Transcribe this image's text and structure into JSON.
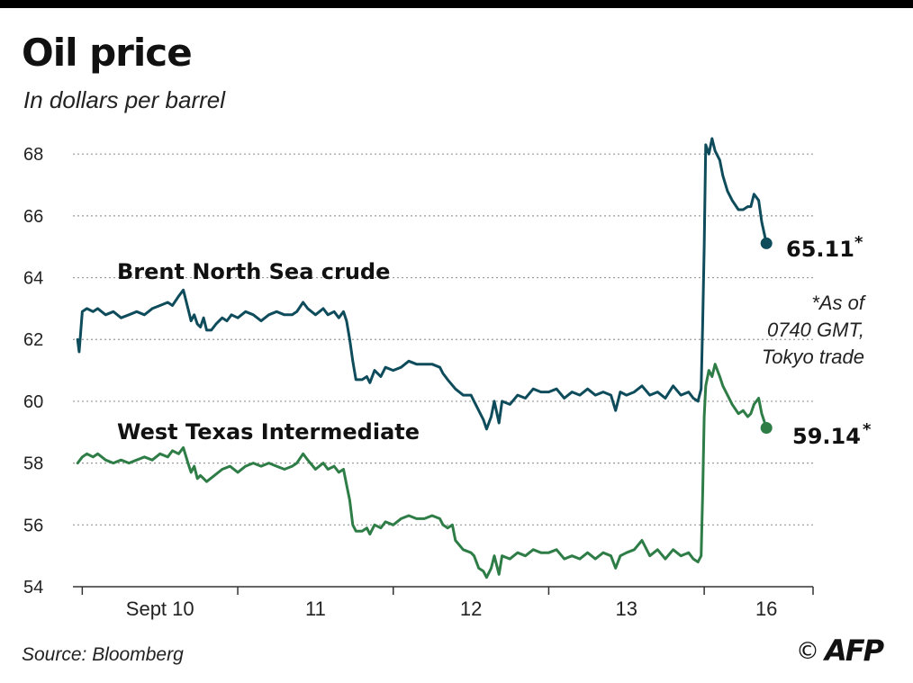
{
  "header": {
    "title": "Oil price",
    "subtitle": "In dollars per barrel"
  },
  "footer": {
    "source": "Source: Bloomberg",
    "copyright_symbol": "©",
    "logo_text": "AFP"
  },
  "note": {
    "lines": [
      "*As of",
      "0740 GMT,",
      "Tokyo trade"
    ]
  },
  "colors": {
    "brent": "#0e4c5c",
    "wti": "#2e7d47",
    "grid": "#999999",
    "axis": "#333333"
  },
  "chart_data": {
    "type": "line",
    "title": "Oil price",
    "subtitle": "In dollars per barrel",
    "ylim": [
      54,
      68.5
    ],
    "yticks": [
      54,
      56,
      58,
      60,
      62,
      64,
      66,
      68
    ],
    "grid": true,
    "xticks": [
      {
        "x": 1.5,
        "label": "Sept 10"
      },
      {
        "x": 2.5,
        "label": "11"
      },
      {
        "x": 3.5,
        "label": "12"
      },
      {
        "x": 4.5,
        "label": "13"
      },
      {
        "x": 5.4,
        "label": "16"
      }
    ],
    "xlim": [
      0.94,
      5.7
    ],
    "day_boundaries": [
      1,
      2,
      3,
      4,
      5,
      5.7
    ],
    "series": [
      {
        "name": "Brent North Sea crude",
        "color_key": "brent",
        "last_value": "65.11",
        "points": [
          [
            0.97,
            62.0
          ],
          [
            0.98,
            61.6
          ],
          [
            1.0,
            62.9
          ],
          [
            1.03,
            63.0
          ],
          [
            1.07,
            62.9
          ],
          [
            1.1,
            63.0
          ],
          [
            1.15,
            62.8
          ],
          [
            1.2,
            62.9
          ],
          [
            1.25,
            62.7
          ],
          [
            1.3,
            62.8
          ],
          [
            1.35,
            62.9
          ],
          [
            1.4,
            62.8
          ],
          [
            1.45,
            63.0
          ],
          [
            1.5,
            63.1
          ],
          [
            1.55,
            63.2
          ],
          [
            1.58,
            63.1
          ],
          [
            1.62,
            63.4
          ],
          [
            1.65,
            63.6
          ],
          [
            1.68,
            63.0
          ],
          [
            1.7,
            62.6
          ],
          [
            1.72,
            62.8
          ],
          [
            1.74,
            62.5
          ],
          [
            1.76,
            62.4
          ],
          [
            1.78,
            62.7
          ],
          [
            1.8,
            62.3
          ],
          [
            1.83,
            62.3
          ],
          [
            1.86,
            62.5
          ],
          [
            1.9,
            62.7
          ],
          [
            1.93,
            62.6
          ],
          [
            1.96,
            62.8
          ],
          [
            2.0,
            62.7
          ],
          [
            2.05,
            62.9
          ],
          [
            2.1,
            62.8
          ],
          [
            2.15,
            62.6
          ],
          [
            2.2,
            62.8
          ],
          [
            2.25,
            62.9
          ],
          [
            2.3,
            62.8
          ],
          [
            2.35,
            62.8
          ],
          [
            2.38,
            62.9
          ],
          [
            2.42,
            63.2
          ],
          [
            2.45,
            63.0
          ],
          [
            2.5,
            62.8
          ],
          [
            2.55,
            63.0
          ],
          [
            2.58,
            62.8
          ],
          [
            2.62,
            62.9
          ],
          [
            2.65,
            62.7
          ],
          [
            2.68,
            62.9
          ],
          [
            2.7,
            62.6
          ],
          [
            2.72,
            62.0
          ],
          [
            2.74,
            61.3
          ],
          [
            2.76,
            60.7
          ],
          [
            2.8,
            60.7
          ],
          [
            2.83,
            60.8
          ],
          [
            2.85,
            60.6
          ],
          [
            2.88,
            61.0
          ],
          [
            2.92,
            60.8
          ],
          [
            2.95,
            61.1
          ],
          [
            3.0,
            61.0
          ],
          [
            3.05,
            61.1
          ],
          [
            3.1,
            61.3
          ],
          [
            3.15,
            61.2
          ],
          [
            3.2,
            61.2
          ],
          [
            3.25,
            61.2
          ],
          [
            3.3,
            61.1
          ],
          [
            3.32,
            60.9
          ],
          [
            3.35,
            60.7
          ],
          [
            3.4,
            60.4
          ],
          [
            3.45,
            60.2
          ],
          [
            3.5,
            60.2
          ],
          [
            3.52,
            60.0
          ],
          [
            3.55,
            59.7
          ],
          [
            3.58,
            59.4
          ],
          [
            3.6,
            59.1
          ],
          [
            3.63,
            59.5
          ],
          [
            3.65,
            60.0
          ],
          [
            3.68,
            59.3
          ],
          [
            3.7,
            60.0
          ],
          [
            3.75,
            59.9
          ],
          [
            3.8,
            60.2
          ],
          [
            3.85,
            60.1
          ],
          [
            3.9,
            60.4
          ],
          [
            3.95,
            60.3
          ],
          [
            4.0,
            60.3
          ],
          [
            4.05,
            60.4
          ],
          [
            4.1,
            60.1
          ],
          [
            4.15,
            60.3
          ],
          [
            4.2,
            60.2
          ],
          [
            4.25,
            60.4
          ],
          [
            4.3,
            60.2
          ],
          [
            4.35,
            60.3
          ],
          [
            4.4,
            60.2
          ],
          [
            4.43,
            59.7
          ],
          [
            4.46,
            60.3
          ],
          [
            4.5,
            60.2
          ],
          [
            4.55,
            60.3
          ],
          [
            4.6,
            60.5
          ],
          [
            4.65,
            60.2
          ],
          [
            4.7,
            60.3
          ],
          [
            4.75,
            60.1
          ],
          [
            4.8,
            60.5
          ],
          [
            4.85,
            60.2
          ],
          [
            4.9,
            60.3
          ],
          [
            4.93,
            60.1
          ],
          [
            4.96,
            60.0
          ],
          [
            4.98,
            60.4
          ],
          [
            4.99,
            62.5
          ],
          [
            5.0,
            65.0
          ],
          [
            5.01,
            68.3
          ],
          [
            5.03,
            68.0
          ],
          [
            5.05,
            68.5
          ],
          [
            5.07,
            68.1
          ],
          [
            5.1,
            67.8
          ],
          [
            5.12,
            67.3
          ],
          [
            5.15,
            66.8
          ],
          [
            5.18,
            66.5
          ],
          [
            5.22,
            66.2
          ],
          [
            5.25,
            66.2
          ],
          [
            5.28,
            66.3
          ],
          [
            5.3,
            66.3
          ],
          [
            5.32,
            66.7
          ],
          [
            5.35,
            66.5
          ],
          [
            5.37,
            65.8
          ],
          [
            5.4,
            65.11
          ]
        ]
      },
      {
        "name": "West Texas Intermediate",
        "color_key": "wti",
        "last_value": "59.14",
        "points": [
          [
            0.97,
            58.0
          ],
          [
            1.0,
            58.2
          ],
          [
            1.03,
            58.3
          ],
          [
            1.07,
            58.2
          ],
          [
            1.1,
            58.3
          ],
          [
            1.15,
            58.1
          ],
          [
            1.2,
            58.0
          ],
          [
            1.25,
            58.1
          ],
          [
            1.3,
            58.0
          ],
          [
            1.35,
            58.1
          ],
          [
            1.4,
            58.2
          ],
          [
            1.45,
            58.1
          ],
          [
            1.5,
            58.3
          ],
          [
            1.55,
            58.2
          ],
          [
            1.58,
            58.4
          ],
          [
            1.62,
            58.3
          ],
          [
            1.65,
            58.5
          ],
          [
            1.68,
            58.0
          ],
          [
            1.7,
            57.7
          ],
          [
            1.72,
            57.9
          ],
          [
            1.74,
            57.5
          ],
          [
            1.76,
            57.6
          ],
          [
            1.78,
            57.5
          ],
          [
            1.8,
            57.4
          ],
          [
            1.85,
            57.6
          ],
          [
            1.9,
            57.8
          ],
          [
            1.95,
            57.9
          ],
          [
            2.0,
            57.7
          ],
          [
            2.05,
            57.9
          ],
          [
            2.1,
            58.0
          ],
          [
            2.15,
            57.9
          ],
          [
            2.2,
            58.0
          ],
          [
            2.25,
            57.9
          ],
          [
            2.3,
            57.8
          ],
          [
            2.35,
            57.9
          ],
          [
            2.38,
            58.0
          ],
          [
            2.42,
            58.3
          ],
          [
            2.45,
            58.1
          ],
          [
            2.5,
            57.8
          ],
          [
            2.55,
            58.0
          ],
          [
            2.58,
            57.8
          ],
          [
            2.62,
            57.9
          ],
          [
            2.65,
            57.7
          ],
          [
            2.68,
            57.8
          ],
          [
            2.7,
            57.3
          ],
          [
            2.72,
            56.8
          ],
          [
            2.74,
            56.0
          ],
          [
            2.76,
            55.8
          ],
          [
            2.8,
            55.8
          ],
          [
            2.83,
            55.9
          ],
          [
            2.85,
            55.7
          ],
          [
            2.88,
            56.0
          ],
          [
            2.92,
            55.9
          ],
          [
            2.95,
            56.1
          ],
          [
            3.0,
            56.0
          ],
          [
            3.05,
            56.2
          ],
          [
            3.1,
            56.3
          ],
          [
            3.15,
            56.2
          ],
          [
            3.2,
            56.2
          ],
          [
            3.25,
            56.3
          ],
          [
            3.3,
            56.2
          ],
          [
            3.32,
            56.0
          ],
          [
            3.35,
            55.9
          ],
          [
            3.38,
            56.0
          ],
          [
            3.4,
            55.5
          ],
          [
            3.45,
            55.2
          ],
          [
            3.5,
            55.1
          ],
          [
            3.52,
            55.0
          ],
          [
            3.55,
            54.6
          ],
          [
            3.58,
            54.5
          ],
          [
            3.6,
            54.3
          ],
          [
            3.63,
            54.6
          ],
          [
            3.65,
            55.0
          ],
          [
            3.68,
            54.4
          ],
          [
            3.7,
            55.0
          ],
          [
            3.75,
            54.9
          ],
          [
            3.8,
            55.1
          ],
          [
            3.85,
            55.0
          ],
          [
            3.9,
            55.2
          ],
          [
            3.95,
            55.1
          ],
          [
            4.0,
            55.1
          ],
          [
            4.05,
            55.2
          ],
          [
            4.1,
            54.9
          ],
          [
            4.15,
            55.0
          ],
          [
            4.2,
            54.9
          ],
          [
            4.25,
            55.1
          ],
          [
            4.3,
            54.9
          ],
          [
            4.35,
            55.1
          ],
          [
            4.4,
            55.0
          ],
          [
            4.43,
            54.6
          ],
          [
            4.46,
            55.0
          ],
          [
            4.5,
            55.1
          ],
          [
            4.55,
            55.2
          ],
          [
            4.6,
            55.5
          ],
          [
            4.65,
            55.0
          ],
          [
            4.7,
            55.2
          ],
          [
            4.75,
            54.9
          ],
          [
            4.8,
            55.2
          ],
          [
            4.85,
            55.0
          ],
          [
            4.9,
            55.1
          ],
          [
            4.93,
            54.9
          ],
          [
            4.96,
            54.8
          ],
          [
            4.98,
            55.0
          ],
          [
            4.99,
            57.0
          ],
          [
            5.0,
            59.5
          ],
          [
            5.01,
            60.5
          ],
          [
            5.03,
            61.0
          ],
          [
            5.05,
            60.8
          ],
          [
            5.07,
            61.2
          ],
          [
            5.1,
            60.8
          ],
          [
            5.12,
            60.5
          ],
          [
            5.15,
            60.2
          ],
          [
            5.18,
            59.9
          ],
          [
            5.22,
            59.6
          ],
          [
            5.25,
            59.7
          ],
          [
            5.28,
            59.5
          ],
          [
            5.3,
            59.6
          ],
          [
            5.32,
            59.9
          ],
          [
            5.35,
            60.1
          ],
          [
            5.37,
            59.6
          ],
          [
            5.4,
            59.14
          ]
        ]
      }
    ]
  }
}
